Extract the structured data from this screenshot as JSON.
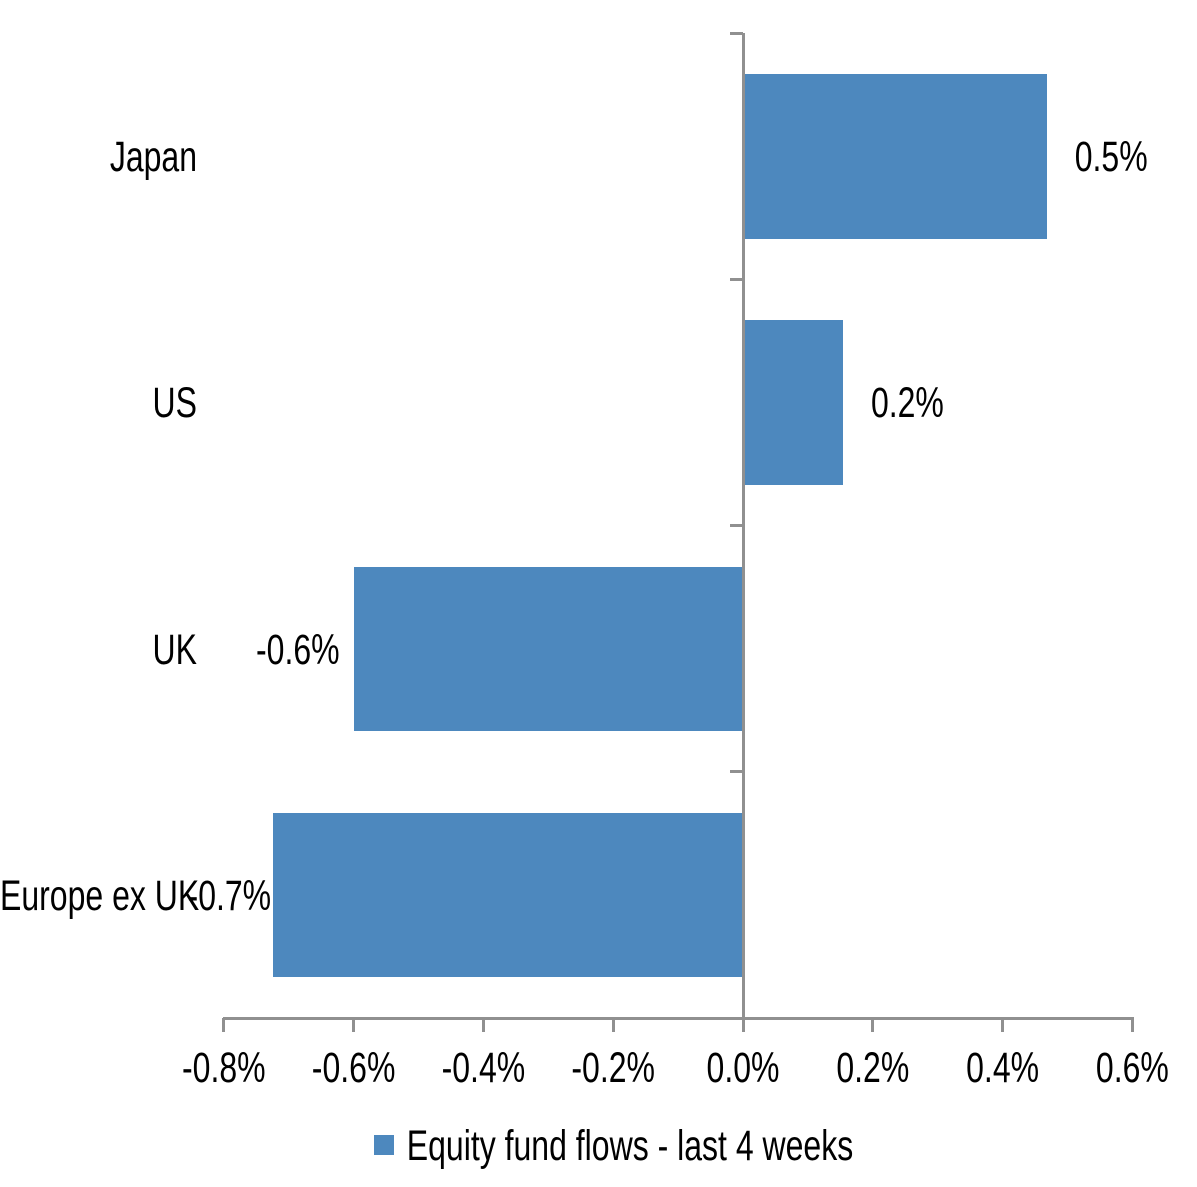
{
  "chart_data": {
    "type": "bar",
    "orientation": "horizontal",
    "title": "",
    "xlabel": "",
    "ylabel": "",
    "categories": [
      "Japan",
      "US",
      "UK",
      "Europe ex UK"
    ],
    "series": [
      {
        "name": "Equity fund flows - last 4 weeks",
        "values": [
          0.5,
          0.2,
          -0.6,
          -0.7
        ],
        "value_labels": [
          "0.5%",
          "0.2%",
          "-0.6%",
          "-0.7%"
        ],
        "values_precise_est": [
          0.468,
          0.154,
          -0.6,
          -0.724
        ]
      }
    ],
    "x_axis": {
      "min": -0.8,
      "max": 0.6,
      "tick_step": 0.2,
      "unit": "percent",
      "tick_labels": [
        "-0.8%",
        "-0.6%",
        "-0.4%",
        "-0.2%",
        "0.0%",
        "0.2%",
        "0.4%",
        "0.6%"
      ]
    },
    "grid": false,
    "legend": {
      "position": "bottom",
      "entries": [
        "Equity fund flows - last 4 weeks"
      ]
    },
    "colors": {
      "bar": "#4D88BE",
      "axis": "#909090",
      "text": "#000000",
      "background": "#FFFFFF"
    }
  }
}
